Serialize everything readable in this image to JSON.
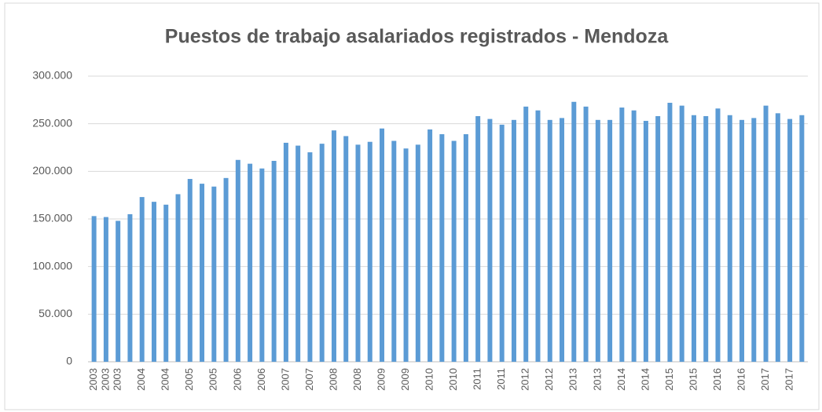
{
  "chart_data": {
    "type": "bar",
    "title": "Puestos de trabajo asalariados registrados - Mendoza",
    "categories": [
      "2003",
      "2003",
      "2003",
      null,
      "2004",
      null,
      "2004",
      null,
      "2005",
      null,
      "2005",
      null,
      "2006",
      null,
      "2006",
      null,
      "2007",
      null,
      "2007",
      null,
      "2008",
      null,
      "2008",
      null,
      "2009",
      null,
      "2009",
      null,
      "2010",
      null,
      "2010",
      null,
      "2011",
      null,
      "2011",
      null,
      "2012",
      null,
      "2012",
      null,
      "2013",
      null,
      "2013",
      null,
      "2014",
      null,
      "2014",
      null,
      "2015",
      null,
      "2015",
      null,
      "2016",
      null,
      "2016",
      null,
      "2017",
      null,
      "2017",
      null
    ],
    "values": [
      153000,
      152000,
      148000,
      155000,
      173000,
      168000,
      165000,
      176000,
      192000,
      187000,
      184000,
      193000,
      212000,
      208000,
      203000,
      211000,
      230000,
      227000,
      220000,
      229000,
      243000,
      237000,
      228000,
      231000,
      245000,
      232000,
      224000,
      228000,
      244000,
      239000,
      232000,
      239000,
      258000,
      255000,
      249000,
      254000,
      268000,
      264000,
      254000,
      256000,
      273000,
      268000,
      254000,
      254000,
      267000,
      264000,
      253000,
      258000,
      272000,
      269000,
      259000,
      258000,
      266000,
      259000,
      254000,
      256000,
      269000,
      261000,
      255000,
      259000
    ],
    "color": "#5b9bd5",
    "ylim": [
      0,
      300000
    ],
    "yticks": [
      0,
      {
        "value": 50000,
        "label": "50.000"
      },
      {
        "value": 100000,
        "label": "100.000"
      },
      {
        "value": 150000,
        "label": "150.000"
      },
      {
        "value": 200000,
        "label": "200.000"
      },
      {
        "value": 250000,
        "label": "250.000"
      },
      {
        "value": 300000,
        "label": "300.000"
      }
    ],
    "grid": true
  }
}
